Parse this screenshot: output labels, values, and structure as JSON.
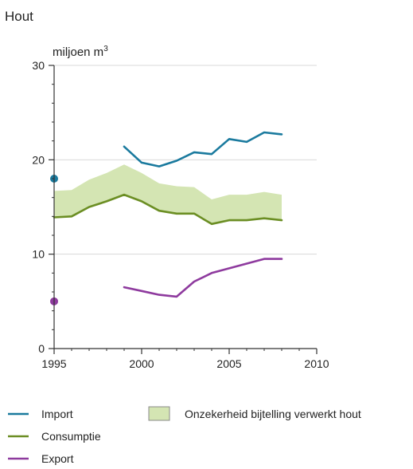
{
  "chart_data": {
    "type": "line",
    "title": "Hout",
    "ylabel_text": "miljoen m",
    "ylabel_sup": "3",
    "xlim": [
      1995,
      2010
    ],
    "ylim": [
      0,
      30
    ],
    "xticks": [
      1995,
      2000,
      2005,
      2010
    ],
    "yticks": [
      0,
      10,
      20,
      30
    ],
    "grid": true,
    "legend_placement": "bottom",
    "band": {
      "name": "Onzekerheid bijtelling verwerkt hout",
      "color": "#d4e5b3",
      "x": [
        1995,
        1996,
        1997,
        1998,
        1999,
        2000,
        2001,
        2002,
        2003,
        2004,
        2005,
        2006,
        2007,
        2008
      ],
      "lower": [
        13.9,
        14.0,
        15.0,
        15.6,
        16.3,
        15.6,
        14.6,
        14.3,
        14.3,
        13.2,
        13.6,
        13.6,
        13.8,
        13.6
      ],
      "upper": [
        16.7,
        16.8,
        17.9,
        18.6,
        19.5,
        18.6,
        17.5,
        17.2,
        17.1,
        15.8,
        16.3,
        16.3,
        16.6,
        16.3
      ]
    },
    "series": [
      {
        "name": "Import",
        "color": "#1a7a9e",
        "x": [
          1999,
          2000,
          2001,
          2002,
          2003,
          2004,
          2005,
          2006,
          2007,
          2008
        ],
        "values": [
          21.4,
          19.7,
          19.3,
          19.9,
          20.8,
          20.6,
          22.2,
          21.9,
          22.9,
          22.7
        ],
        "marker": {
          "x": 1995,
          "y": 18.0
        }
      },
      {
        "name": "Consumptie",
        "color": "#6b8e23",
        "x": [
          1995,
          1996,
          1997,
          1998,
          1999,
          2000,
          2001,
          2002,
          2003,
          2004,
          2005,
          2006,
          2007,
          2008
        ],
        "values": [
          13.9,
          14.0,
          15.0,
          15.6,
          16.3,
          15.6,
          14.6,
          14.3,
          14.3,
          13.2,
          13.6,
          13.6,
          13.8,
          13.6
        ]
      },
      {
        "name": "Export",
        "color": "#8e3a9e",
        "x": [
          1999,
          2000,
          2001,
          2002,
          2003,
          2004,
          2005,
          2006,
          2007,
          2008
        ],
        "values": [
          6.5,
          6.1,
          5.7,
          5.5,
          7.1,
          8.0,
          8.5,
          9.0,
          9.5,
          9.5
        ],
        "marker": {
          "x": 1995,
          "y": 5.0
        }
      }
    ]
  }
}
